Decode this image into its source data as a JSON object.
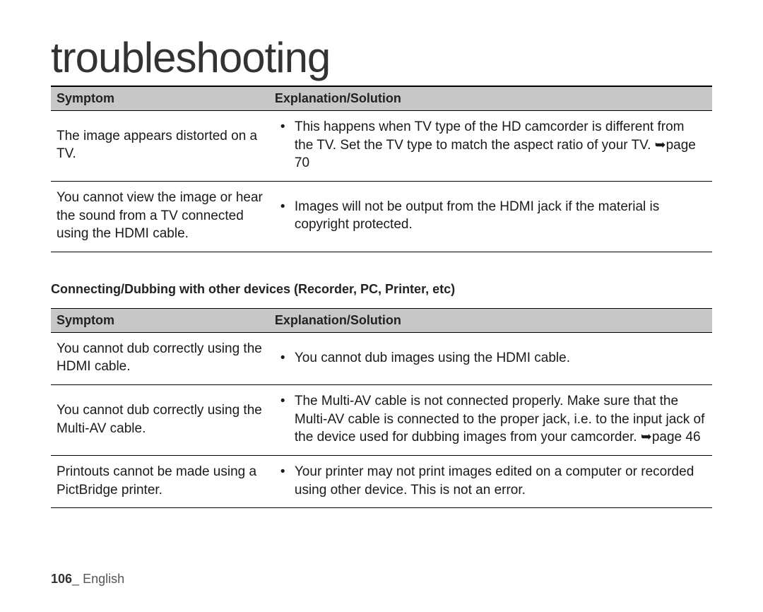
{
  "title": "troubleshooting",
  "table1": {
    "headers": {
      "symptom": "Symptom",
      "solution": "Explanation/Solution"
    },
    "rows": [
      {
        "symptom": "The image appears distorted on a TV.",
        "solution": "This happens when TV type of the HD camcorder is different from the TV. Set the TV type to match the aspect ratio of your TV. ➥page 70"
      },
      {
        "symptom": "You cannot view the image or hear the sound from a TV connected using the HDMI cable.",
        "solution": "Images will not be output from the HDMI jack if the material is copyright protected."
      }
    ]
  },
  "section2_heading": "Connecting/Dubbing with other devices (Recorder, PC, Printer, etc)",
  "table2": {
    "headers": {
      "symptom": "Symptom",
      "solution": "Explanation/Solution"
    },
    "rows": [
      {
        "symptom": "You cannot dub correctly using the HDMI cable.",
        "solution": "You cannot dub images using the HDMI cable."
      },
      {
        "symptom": "You cannot dub correctly using the Multi-AV cable.",
        "solution": "The Multi-AV cable is not connected properly. Make sure that the Multi-AV cable is connected to the proper jack, i.e. to the input jack of the device used for dubbing images from your camcorder. ➥page 46"
      },
      {
        "symptom": "Printouts cannot be made using a PictBridge printer.",
        "solution": "Your printer may not print images edited on a computer or recorded using other device. This is not an error."
      }
    ]
  },
  "footer": {
    "page_number": "106",
    "separator": "_ ",
    "language": "English"
  },
  "colors": {
    "header_bg": "#c7c7c7",
    "border": "#000000",
    "text": "#1a1a1a",
    "background": "#ffffff"
  }
}
